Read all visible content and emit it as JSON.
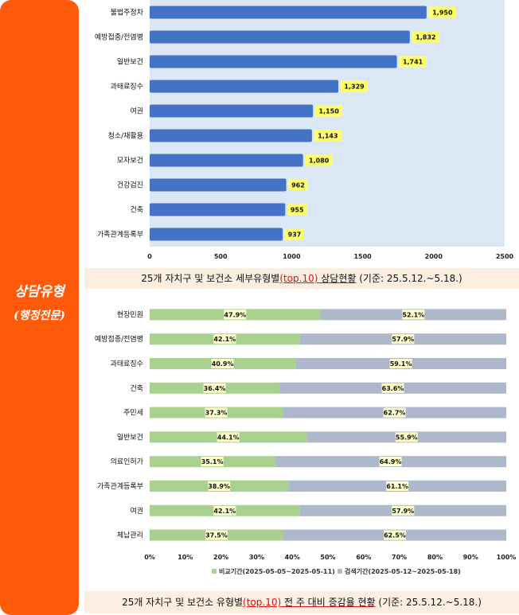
{
  "sidebar": {
    "line1": "상담유형",
    "line2": "(행정전문)",
    "color": "#ff5a0a"
  },
  "chart_data": [
    {
      "type": "bar",
      "orientation": "horizontal",
      "categories": [
        "불법주정차",
        "예방접종/전염병",
        "일반보건",
        "과태료징수",
        "여권",
        "청소/재활용",
        "모자보건",
        "건강검진",
        "건축",
        "가족관계등록부"
      ],
      "values": [
        1950,
        1832,
        1741,
        1329,
        1150,
        1143,
        1080,
        962,
        955,
        937
      ],
      "value_labels": [
        "1,950",
        "1,832",
        "1,741",
        "1,329",
        "1,150",
        "1,143",
        "1,080",
        "962",
        "955",
        "937"
      ],
      "xlim": [
        0,
        2500
      ],
      "xticks": [
        "0",
        "500",
        "1000",
        "1500",
        "2000",
        "2500"
      ],
      "bar_color": "#4472c4",
      "plot_bg": "#dbe7f5",
      "label_bg": "#ffff66",
      "caption": {
        "pre": "25개 자치구 및 보건소 세부유형별",
        "highlight": "(top.10)",
        "mid": " 상담현황",
        "post": " (기준: 25.5.12.~5.18.)"
      }
    },
    {
      "type": "bar",
      "orientation": "horizontal",
      "stacked": "percent",
      "categories": [
        "현장민원",
        "예방접종/전염병",
        "과태료징수",
        "건축",
        "주민세",
        "일반보건",
        "의료인허가",
        "가족관계등록부",
        "여권",
        "체납관리"
      ],
      "series": [
        {
          "name": "비교기간(2025-05-05~2025-05-11)",
          "values": [
            47.9,
            42.1,
            40.9,
            36.4,
            37.3,
            44.1,
            35.1,
            38.9,
            42.1,
            37.5
          ],
          "labels": [
            "47.9%",
            "42.1%",
            "40.9%",
            "36.4%",
            "37.3%",
            "44.1%",
            "35.1%",
            "38.9%",
            "42.1%",
            "37.5%"
          ],
          "color": "#a9d18e"
        },
        {
          "name": "검색기간(2025-05-12~2025-05-18)",
          "values": [
            52.1,
            57.9,
            59.1,
            63.6,
            62.7,
            55.9,
            64.9,
            61.1,
            57.9,
            62.5
          ],
          "labels": [
            "52.1%",
            "57.9%",
            "59.1%",
            "63.6%",
            "62.7%",
            "55.9%",
            "64.9%",
            "61.1%",
            "57.9%",
            "62.5%"
          ],
          "color": "#adb9ca"
        }
      ],
      "xlim": [
        0,
        100
      ],
      "xticks": [
        "0%",
        "10%",
        "20%",
        "30%",
        "40%",
        "50%",
        "60%",
        "70%",
        "80%",
        "90%",
        "100%"
      ],
      "legend": "bottom",
      "label_bg": "#ffffcc",
      "caption": {
        "pre": "25개 자치구 및 보건소 유형별",
        "highlight": "(top.10)",
        "mid": " 전 주 대비 증감율 현황",
        "post": " (기준: 25.5.12.~5.18.)"
      }
    }
  ]
}
